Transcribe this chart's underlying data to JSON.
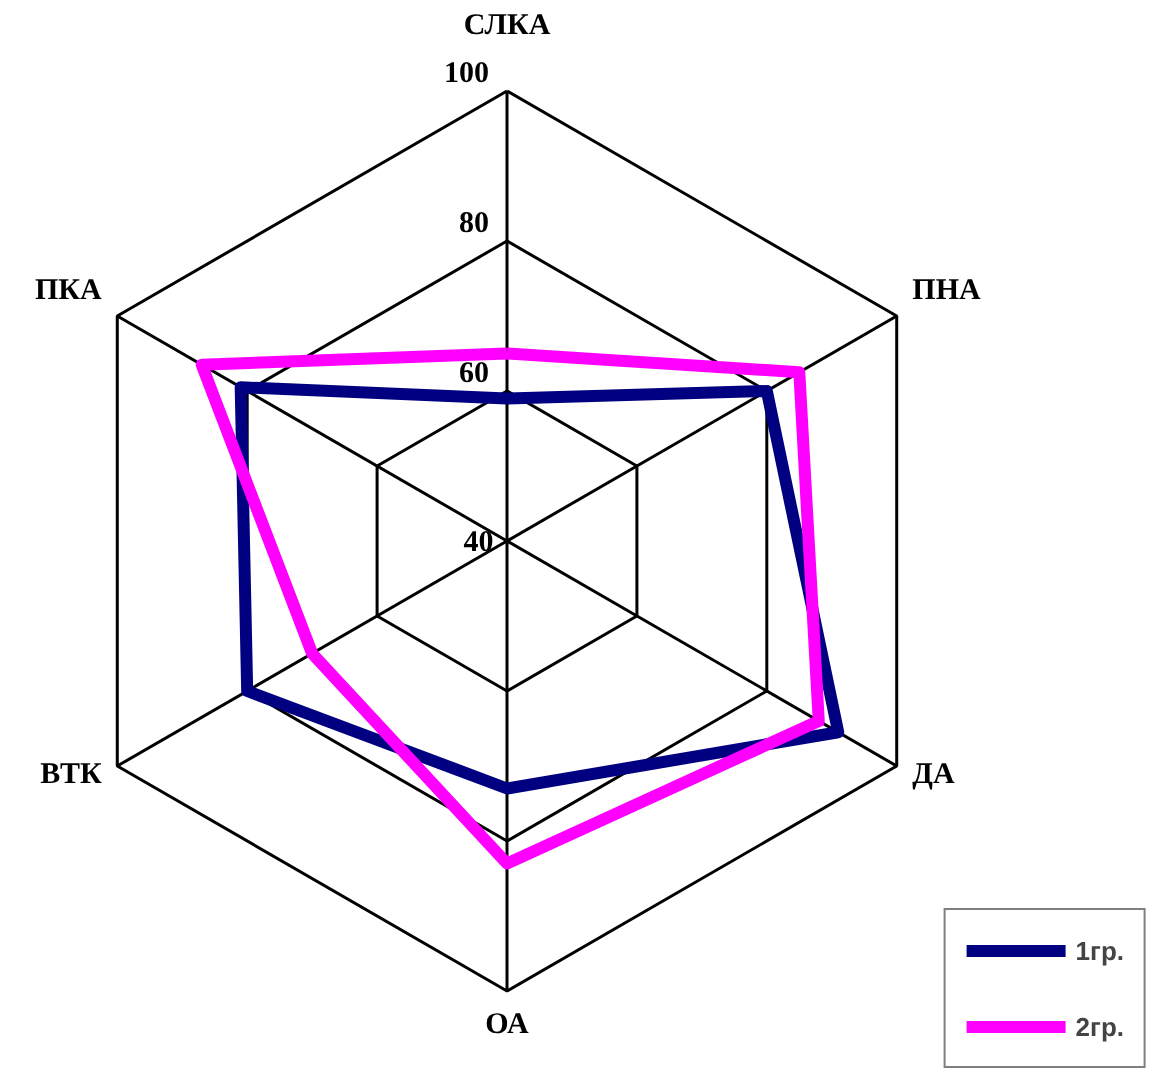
{
  "chart_data": {
    "type": "radar",
    "categories": [
      "СЛКА",
      "ПНА",
      "ДА",
      "ОА",
      "ВТК",
      "ПКА"
    ],
    "ylim": [
      40,
      100
    ],
    "yticks": [
      40,
      60,
      80,
      100
    ],
    "legend": "bottom right",
    "series": [
      {
        "name": "1гр.",
        "color": "#000080",
        "values": [
          59,
          80,
          91,
          73,
          80,
          81
        ]
      },
      {
        "name": "2гр.",
        "color": "#ff00ff",
        "values": [
          65,
          85,
          88,
          83,
          70,
          87
        ]
      }
    ]
  }
}
